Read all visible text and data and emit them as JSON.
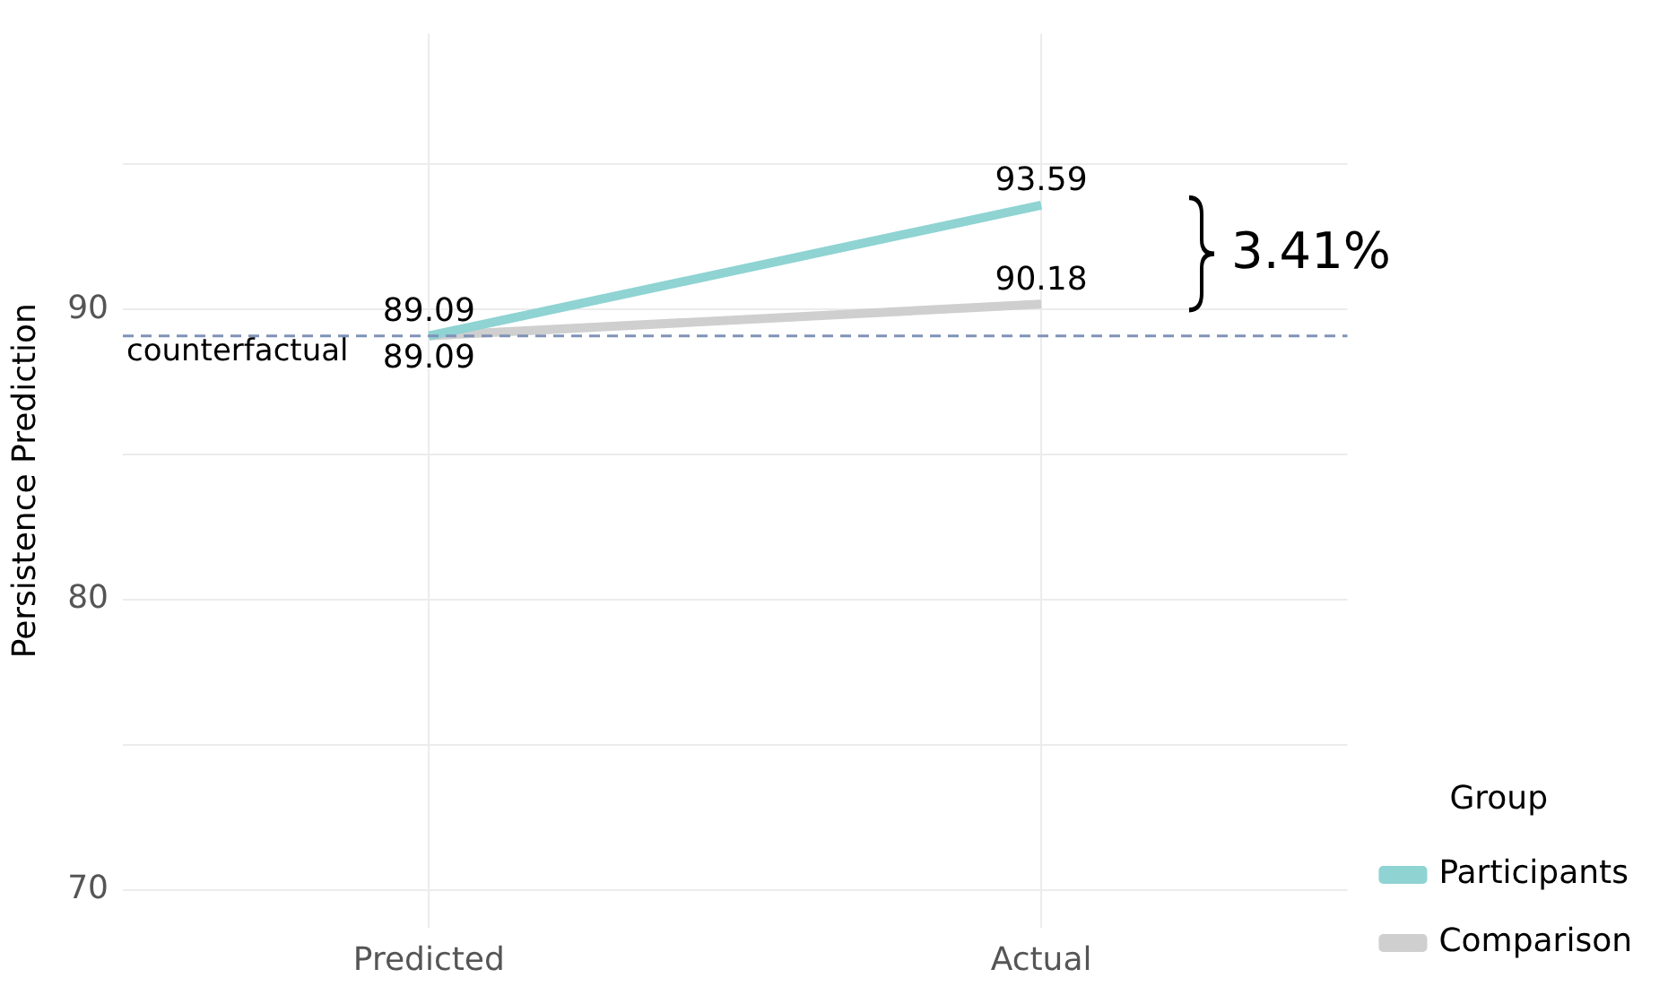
{
  "chart_data": {
    "type": "line",
    "ylabel": "Persistence Prediction",
    "categories": [
      "Predicted",
      "Actual"
    ],
    "series": [
      {
        "name": "Participants",
        "color": "#8fd3d3",
        "values": [
          89.09,
          93.59
        ]
      },
      {
        "name": "Comparison",
        "color": "#cfcfcf",
        "values": [
          89.09,
          90.18
        ]
      }
    ],
    "ylim": [
      68.7,
      99.5
    ],
    "yticks": [
      70,
      {
        "value": 75,
        "label": null
      },
      80,
      {
        "value": 85,
        "label": null
      },
      90,
      {
        "value": 95,
        "label": null
      }
    ],
    "ref_lines": [
      {
        "axis": "y",
        "value": 89.09,
        "label": "counterfactual",
        "color": "#7f93b8",
        "line_style": "dashed"
      }
    ],
    "annotations": [
      "3.41%"
    ],
    "legend_title": "Group",
    "legend": "right",
    "data_labels": true,
    "grid": true,
    "marker": "none",
    "line_style": "solid"
  }
}
